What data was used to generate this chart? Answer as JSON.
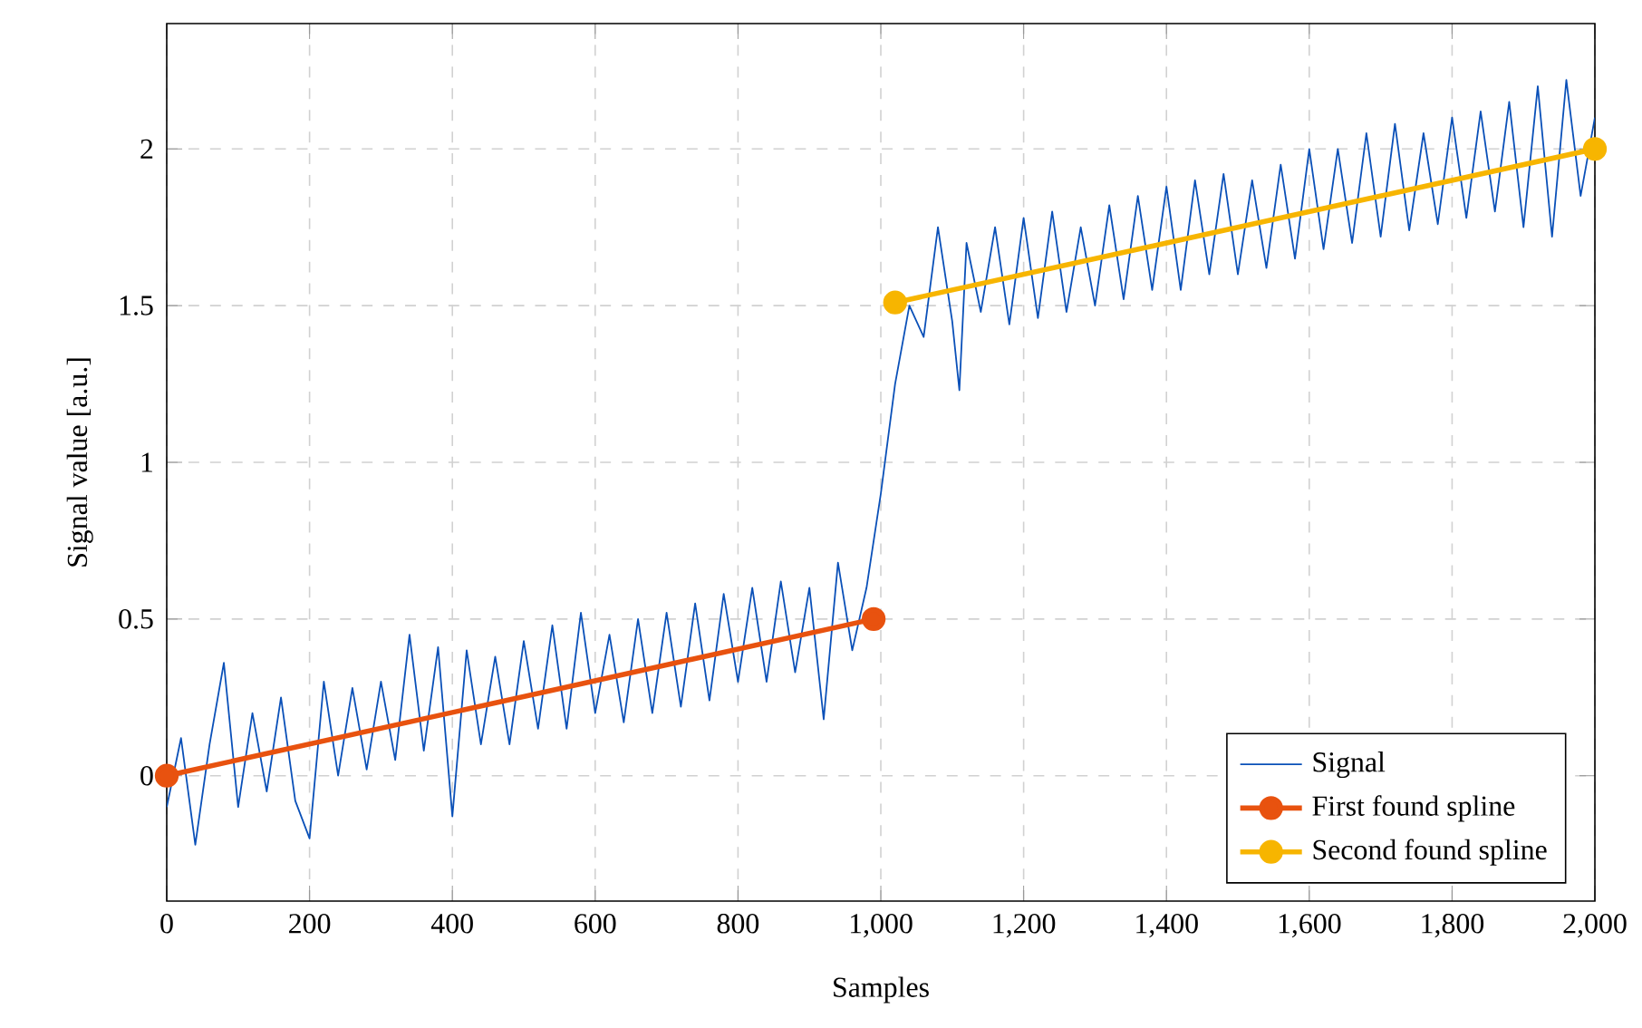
{
  "chart_data": {
    "type": "line",
    "xlabel": "Samples",
    "ylabel": "Signal value [a.u.]",
    "xlim": [
      0,
      2000
    ],
    "ylim": [
      -0.4,
      2.4
    ],
    "xticks": [
      0,
      200,
      400,
      600,
      800,
      {
        "value": 1000,
        "label": "1,000"
      },
      {
        "value": 1200,
        "label": "1,200"
      },
      {
        "value": 1400,
        "label": "1,400"
      },
      {
        "value": 1600,
        "label": "1,600"
      },
      {
        "value": 1800,
        "label": "1,800"
      },
      {
        "value": 2000,
        "label": "2,000"
      }
    ],
    "yticks": [
      0,
      0.5,
      1,
      1.5,
      2
    ],
    "grid": true,
    "legend": "bottom right",
    "series": [
      {
        "name": "Signal",
        "color": "#0a50b8",
        "marker": "none",
        "x": [
          0,
          20,
          40,
          60,
          80,
          100,
          120,
          140,
          160,
          180,
          200,
          220,
          240,
          260,
          280,
          300,
          320,
          340,
          360,
          380,
          400,
          420,
          440,
          460,
          480,
          500,
          520,
          540,
          560,
          580,
          600,
          620,
          640,
          660,
          680,
          700,
          720,
          740,
          760,
          780,
          800,
          820,
          840,
          860,
          880,
          900,
          920,
          940,
          960,
          980,
          1000,
          1020,
          1040,
          1060,
          1080,
          1100,
          1110,
          1120,
          1140,
          1160,
          1180,
          1200,
          1220,
          1240,
          1260,
          1280,
          1300,
          1320,
          1340,
          1360,
          1380,
          1400,
          1420,
          1440,
          1460,
          1480,
          1500,
          1520,
          1540,
          1560,
          1580,
          1600,
          1620,
          1640,
          1660,
          1680,
          1700,
          1720,
          1740,
          1760,
          1780,
          1800,
          1820,
          1840,
          1860,
          1880,
          1900,
          1920,
          1940,
          1960,
          1980,
          2000
        ],
        "values": [
          -0.1,
          0.12,
          -0.22,
          0.1,
          0.36,
          -0.1,
          0.2,
          -0.05,
          0.25,
          -0.08,
          -0.2,
          0.3,
          0.0,
          0.28,
          0.02,
          0.3,
          0.05,
          0.45,
          0.08,
          0.41,
          -0.13,
          0.4,
          0.1,
          0.38,
          0.1,
          0.43,
          0.15,
          0.48,
          0.15,
          0.52,
          0.2,
          0.45,
          0.17,
          0.5,
          0.2,
          0.52,
          0.22,
          0.55,
          0.24,
          0.58,
          0.3,
          0.6,
          0.3,
          0.62,
          0.33,
          0.6,
          0.18,
          0.68,
          0.4,
          0.6,
          0.9,
          1.25,
          1.5,
          1.4,
          1.75,
          1.45,
          1.23,
          1.7,
          1.48,
          1.75,
          1.44,
          1.78,
          1.46,
          1.8,
          1.48,
          1.75,
          1.5,
          1.82,
          1.52,
          1.85,
          1.55,
          1.88,
          1.55,
          1.9,
          1.6,
          1.92,
          1.6,
          1.9,
          1.62,
          1.95,
          1.65,
          2.0,
          1.68,
          2.0,
          1.7,
          2.05,
          1.72,
          2.08,
          1.74,
          2.05,
          1.76,
          2.1,
          1.78,
          2.12,
          1.8,
          2.15,
          1.75,
          2.2,
          1.72,
          2.22,
          1.85,
          2.1
        ]
      },
      {
        "name": "First found spline",
        "color": "#e8520f",
        "marker": "circle",
        "x": [
          0,
          990
        ],
        "values": [
          0,
          0.5
        ]
      },
      {
        "name": "Second found spline",
        "color": "#f7b500",
        "marker": "circle",
        "x": [
          1020,
          2000
        ],
        "values": [
          1.51,
          2.0
        ]
      }
    ]
  }
}
